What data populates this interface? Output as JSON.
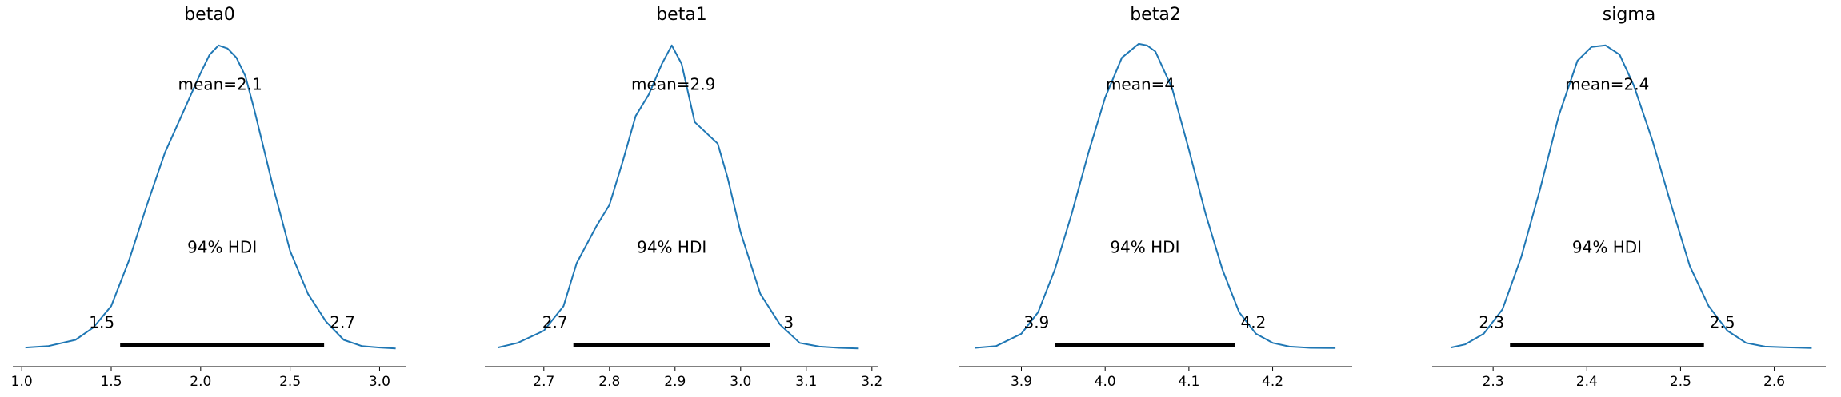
{
  "chart_data": [
    {
      "type": "line",
      "title": "beta0",
      "mean_label": "mean=2.1",
      "hdi_label": "94% HDI",
      "hdi": {
        "lower": 1.55,
        "upper": 2.69,
        "lower_label": "1.5",
        "upper_label": "2.7"
      },
      "xlim": [
        0.95,
        3.15
      ],
      "xticks": [
        1.0,
        1.5,
        2.0,
        2.5,
        3.0
      ],
      "xtick_labels": [
        "1.0",
        "1.5",
        "2.0",
        "2.5",
        "3.0"
      ],
      "density": {
        "x": [
          1.02,
          1.15,
          1.3,
          1.4,
          1.5,
          1.6,
          1.7,
          1.8,
          1.9,
          2.0,
          2.05,
          2.1,
          2.15,
          2.2,
          2.25,
          2.3,
          2.4,
          2.5,
          2.6,
          2.7,
          2.8,
          2.9,
          3.0,
          3.09
        ],
        "y": [
          0.005,
          0.01,
          0.03,
          0.07,
          0.14,
          0.29,
          0.47,
          0.64,
          0.77,
          0.9,
          0.96,
          0.99,
          0.98,
          0.95,
          0.89,
          0.78,
          0.54,
          0.32,
          0.18,
          0.09,
          0.03,
          0.01,
          0.005,
          0.002
        ]
      }
    },
    {
      "type": "line",
      "title": "beta1",
      "mean_label": "mean=2.9",
      "hdi_label": "94% HDI",
      "hdi": {
        "lower": 2.745,
        "upper": 3.045,
        "lower_label": "2.7",
        "upper_label": "3"
      },
      "xlim": [
        2.61,
        3.21
      ],
      "xticks": [
        2.7,
        2.8,
        2.9,
        3.0,
        3.1,
        3.2
      ],
      "xtick_labels": [
        "2.7",
        "2.8",
        "2.9",
        "3.0",
        "3.1",
        "3.2"
      ],
      "density": {
        "x": [
          2.63,
          2.66,
          2.7,
          2.73,
          2.75,
          2.78,
          2.8,
          2.82,
          2.84,
          2.86,
          2.88,
          2.895,
          2.91,
          2.93,
          2.95,
          2.965,
          2.98,
          3.0,
          3.03,
          3.06,
          3.09,
          3.12,
          3.15,
          3.18
        ],
        "y": [
          0.005,
          0.02,
          0.06,
          0.14,
          0.28,
          0.4,
          0.47,
          0.61,
          0.76,
          0.83,
          0.93,
          0.99,
          0.93,
          0.74,
          0.7,
          0.67,
          0.56,
          0.38,
          0.18,
          0.08,
          0.02,
          0.008,
          0.004,
          0.002
        ]
      }
    },
    {
      "type": "line",
      "title": "beta2",
      "mean_label": "mean=4",
      "hdi_label": "94% HDI",
      "hdi": {
        "lower": 3.94,
        "upper": 4.155,
        "lower_label": "3.9",
        "upper_label": "4.2"
      },
      "xlim": [
        3.825,
        4.295
      ],
      "xticks": [
        3.9,
        4.0,
        4.1,
        4.2
      ],
      "xtick_labels": [
        "3.9",
        "4.0",
        "4.1",
        "4.2"
      ],
      "density": {
        "x": [
          3.845,
          3.87,
          3.9,
          3.92,
          3.94,
          3.96,
          3.98,
          4.0,
          4.02,
          4.04,
          4.05,
          4.06,
          4.08,
          4.1,
          4.12,
          4.14,
          4.16,
          4.18,
          4.2,
          4.22,
          4.245,
          4.275
        ],
        "y": [
          0.004,
          0.01,
          0.05,
          0.12,
          0.26,
          0.44,
          0.64,
          0.82,
          0.95,
          0.995,
          0.99,
          0.97,
          0.85,
          0.65,
          0.44,
          0.26,
          0.12,
          0.05,
          0.02,
          0.008,
          0.004,
          0.003
        ]
      }
    },
    {
      "type": "line",
      "title": "sigma",
      "mean_label": "mean=2.4",
      "hdi_label": "94% HDI",
      "hdi": {
        "lower": 2.318,
        "upper": 2.525,
        "lower_label": "2.3",
        "upper_label": "2.5"
      },
      "xlim": [
        2.235,
        2.655
      ],
      "xticks": [
        2.3,
        2.4,
        2.5,
        2.6
      ],
      "xtick_labels": [
        "2.3",
        "2.4",
        "2.5",
        "2.6"
      ],
      "density": {
        "x": [
          2.255,
          2.27,
          2.29,
          2.31,
          2.33,
          2.35,
          2.37,
          2.39,
          2.405,
          2.42,
          2.435,
          2.45,
          2.47,
          2.49,
          2.51,
          2.53,
          2.55,
          2.57,
          2.59,
          2.61,
          2.64
        ],
        "y": [
          0.005,
          0.015,
          0.05,
          0.13,
          0.3,
          0.52,
          0.76,
          0.94,
          0.985,
          0.99,
          0.96,
          0.86,
          0.68,
          0.47,
          0.27,
          0.14,
          0.06,
          0.02,
          0.008,
          0.006,
          0.003
        ]
      }
    }
  ]
}
